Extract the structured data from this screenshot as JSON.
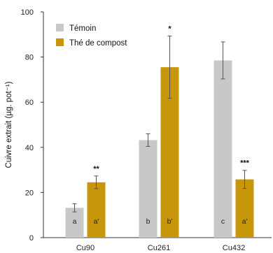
{
  "chart_data": {
    "type": "bar",
    "ylabel": "Cuivre extrait (µg. pot⁻¹)",
    "ylim": [
      0,
      100
    ],
    "yticks": [
      0,
      20,
      40,
      60,
      80,
      100
    ],
    "categories": [
      "Cu90",
      "Cu261",
      "Cu432"
    ],
    "legend_position": "top-left",
    "grid": false,
    "series": [
      {
        "name": "Témoin",
        "color": "#c8c8c8",
        "values": [
          13.2,
          43.2,
          78.5
        ],
        "errors": [
          1.8,
          2.8,
          8.2
        ],
        "letters": [
          "a",
          "b",
          "c"
        ],
        "significance": [
          "",
          "",
          ""
        ]
      },
      {
        "name": "Thé de compost",
        "color": "#c8960a",
        "values": [
          24.5,
          75.5,
          25.8
        ],
        "errors": [
          2.8,
          13.8,
          4.0
        ],
        "letters": [
          "a'",
          "b'",
          "a'"
        ],
        "significance": [
          "**",
          "*",
          "***"
        ]
      }
    ]
  }
}
